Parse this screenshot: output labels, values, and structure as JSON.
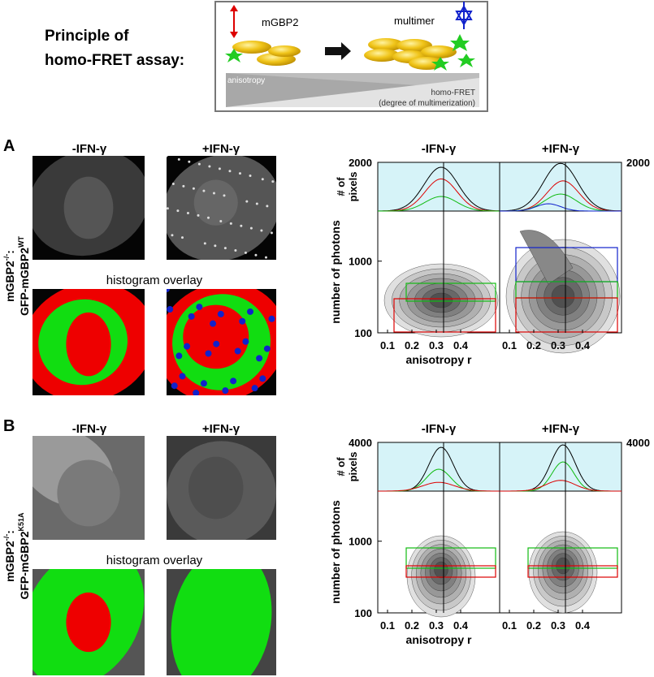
{
  "header": {
    "title_lines": [
      "Principle of",
      "homo-FRET assay:"
    ],
    "diagram": {
      "monomer_label": "mGBP2",
      "multimer_label": "multimer",
      "axis_left": "anisotropy",
      "axis_right": "homo-FRET",
      "axis_right_note": "(degree of multimerization)"
    }
  },
  "panels": [
    {
      "letter": "A",
      "cell_line": [
        {
          "base": "mGBP2",
          "sup": "-/-",
          "tail": ":"
        },
        {
          "base": "GFP-mGBP2",
          "sup": "WT",
          "tail": ""
        }
      ],
      "conditions": [
        "-IFN-γ",
        "+IFN-γ"
      ],
      "overlay_label": "histogram overlay",
      "plot": {
        "hist_ylabel": [
          "# of",
          "pixels"
        ],
        "hist_ylim": [
          0,
          2000
        ],
        "hist_yticks": [
          2000
        ],
        "ylabel": "number of  photons",
        "ylim": [
          100,
          5000
        ],
        "yticks": [
          100,
          1000
        ],
        "xlabel": "anisotropy r",
        "xlim": [
          0.06,
          0.56
        ],
        "xticks": [
          0.1,
          0.2,
          0.3,
          0.4
        ]
      }
    },
    {
      "letter": "B",
      "cell_line": [
        {
          "base": "mGBP2",
          "sup": "-/-",
          "tail": ":"
        },
        {
          "base": "GFP-mGBP2",
          "sup": "K51A",
          "tail": ""
        }
      ],
      "conditions": [
        "-IFN-γ",
        "+IFN-γ"
      ],
      "overlay_label": "histogram overlay",
      "plot": {
        "hist_ylabel": [
          "# of",
          "pixels"
        ],
        "hist_ylim": [
          0,
          4000
        ],
        "hist_yticks": [
          4000
        ],
        "ylabel": "number of  photons",
        "ylim": [
          100,
          5000
        ],
        "yticks": [
          100,
          1000
        ],
        "xlabel": "anisotropy r",
        "xlim": [
          0.06,
          0.56
        ],
        "xticks": [
          0.1,
          0.2,
          0.3,
          0.4
        ]
      }
    }
  ]
}
